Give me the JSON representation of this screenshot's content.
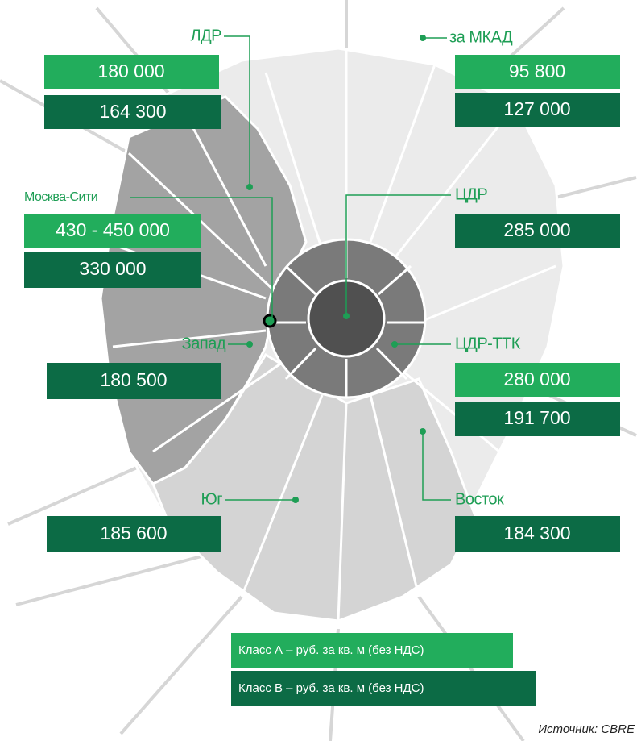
{
  "regions": [
    {
      "name": "ЛДР",
      "class_a": "180 000",
      "class_b": "164 300"
    },
    {
      "name": "за МКАД",
      "class_a": "95 800",
      "class_b": "127 000"
    },
    {
      "name": "Москва-Сити",
      "class_a": "430 - 450 000",
      "class_b": "330 000"
    },
    {
      "name": "ЦДР",
      "class_b": "285 000"
    },
    {
      "name": "Запад",
      "class_b": "180 500"
    },
    {
      "name": "ЦДР-ТТК",
      "class_a": "280 000",
      "class_b": "191 700"
    },
    {
      "name": "Юг",
      "class_b": "185 600"
    },
    {
      "name": "Восток",
      "class_b": "184 300"
    }
  ],
  "legend": {
    "class_a": "Класс А – руб. за кв. м (без НДС)",
    "class_b": "Класс В – руб. за кв. м (без НДС)"
  },
  "source": "Источник: CBRE"
}
